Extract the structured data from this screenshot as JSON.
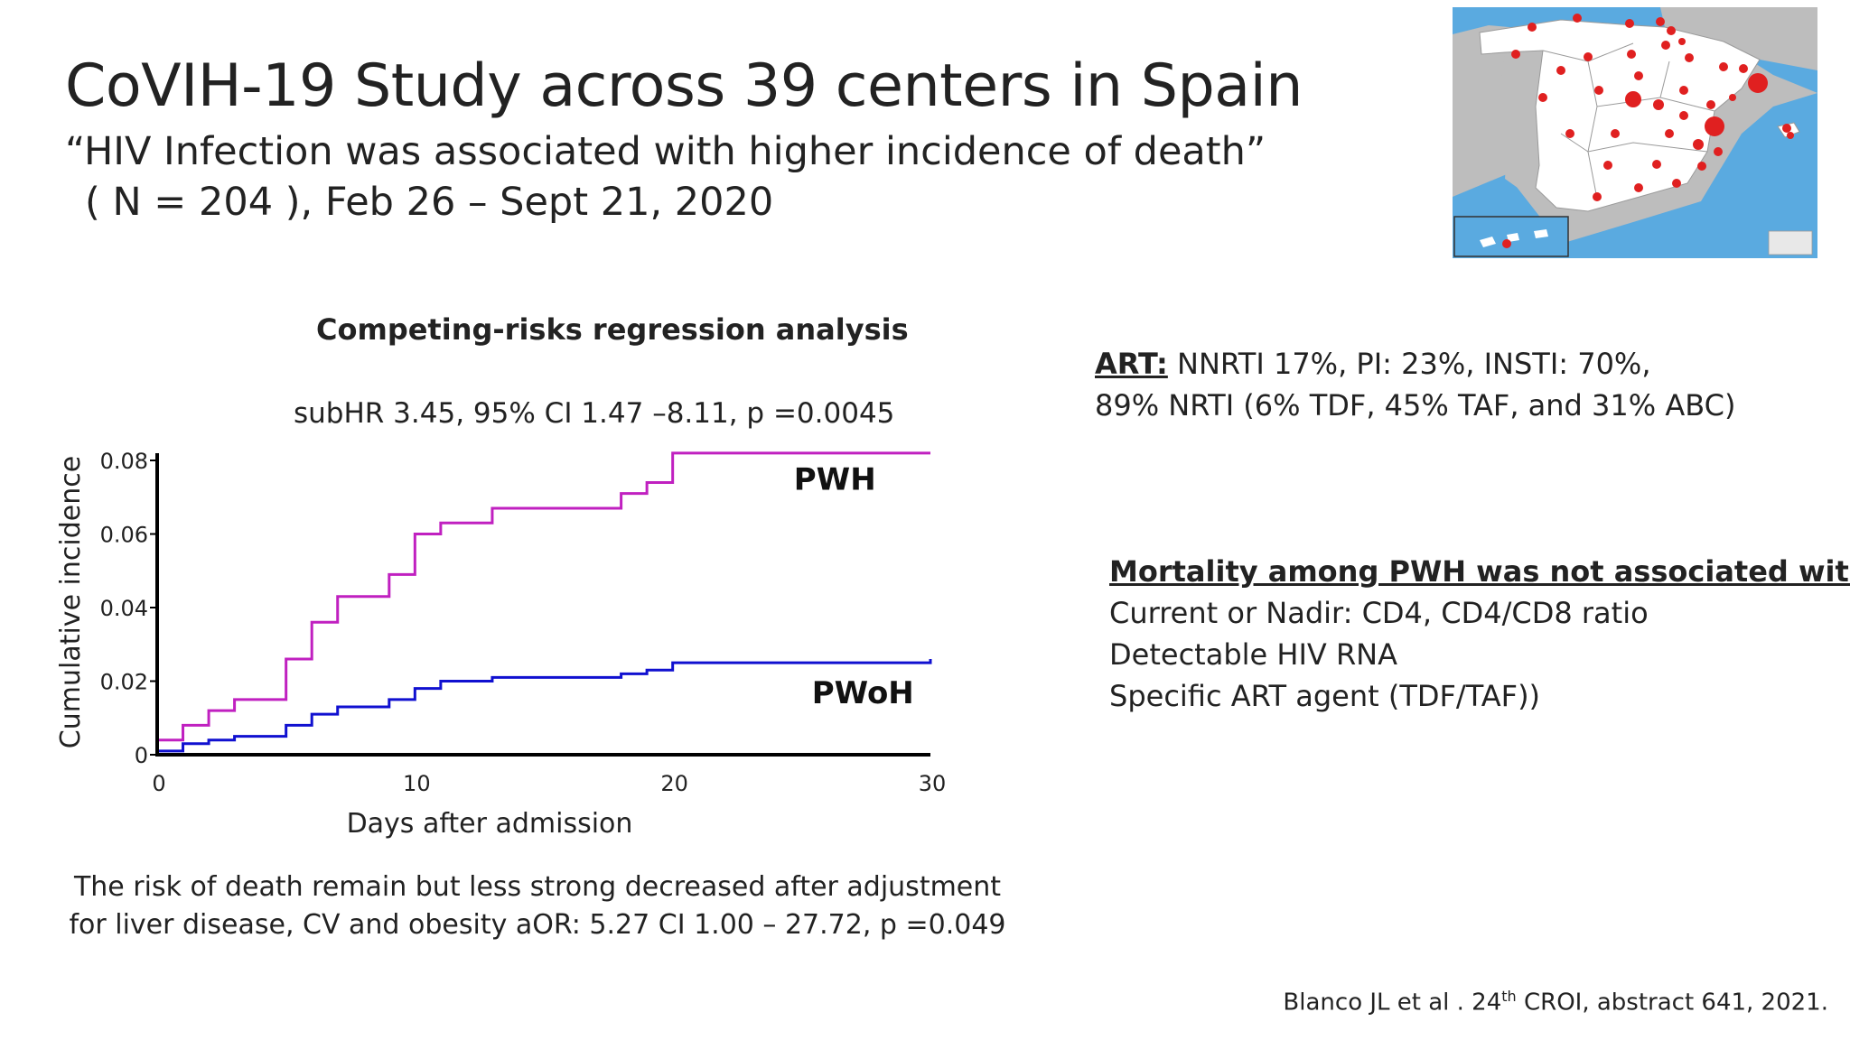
{
  "slide": {
    "title": "CoVIH-19 Study across 39 centers in Spain",
    "subtitle_line1": "“HIV Infection was associated with higher incidence of death”",
    "subtitle_line2": "( N = 204 ), Feb 26 –  Sept 21, 2020"
  },
  "chart_data": {
    "type": "line",
    "title": "Competing-risks regression analysis",
    "subtitle": "subHR 3.45, 95% CI 1.47 –8.11, p =0.0045",
    "xlabel": "Days after admission",
    "ylabel": "Cumulative incidence",
    "xlim": [
      0,
      30
    ],
    "ylim": [
      0,
      0.08
    ],
    "x_ticks": [
      "0",
      "10",
      "20",
      "30"
    ],
    "y_ticks": [
      "0",
      "0.02",
      "0.04",
      "0.06",
      "0.08"
    ],
    "grid": false,
    "step": true,
    "series": [
      {
        "name": "PWH",
        "color": "#c020c0",
        "x": [
          0,
          1,
          2,
          3,
          5,
          6,
          7,
          9,
          10,
          11,
          13,
          16,
          18,
          19,
          20,
          30
        ],
        "y": [
          0.004,
          0.008,
          0.012,
          0.015,
          0.026,
          0.036,
          0.043,
          0.049,
          0.06,
          0.063,
          0.067,
          0.067,
          0.071,
          0.074,
          0.082,
          0.082
        ]
      },
      {
        "name": "PWoH",
        "color": "#1010d0",
        "x": [
          0,
          1,
          2,
          3,
          5,
          6,
          7,
          9,
          10,
          11,
          13,
          18,
          19,
          20,
          30
        ],
        "y": [
          0.001,
          0.003,
          0.004,
          0.005,
          0.008,
          0.011,
          0.013,
          0.015,
          0.018,
          0.02,
          0.021,
          0.022,
          0.023,
          0.025,
          0.026
        ]
      }
    ]
  },
  "art": {
    "label": "ART:",
    "line1": " NNRTI 17%, PI: 23%, INSTI: 70%,",
    "line2": "89% NRTI (6% TDF, 45% TAF, and 31% ABC)"
  },
  "mortality": {
    "heading": "Mortality among PWH was not associated with:",
    "items": [
      "Current or Nadir: CD4, CD4/CD8 ratio",
      "Detectable HIV RNA",
      "Specific ART agent (TDF/TAF))"
    ]
  },
  "note": "The risk of death remain but less strong decreased after adjustment for liver disease, CV and obesity aOR: 5.27 CI 1.00 – 27.72, p =0.049",
  "citation": {
    "before": "Blanco JL  et al . 24",
    "sup": "th",
    "after": " CROI, abstract 641, 2021."
  },
  "map": {
    "icon": "spain-map",
    "land_color": "#ffffff",
    "neighbor_color": "#bdbdbd",
    "sea_color": "#5aaae0",
    "marker_color": "#e02020",
    "marker_count": 39
  }
}
